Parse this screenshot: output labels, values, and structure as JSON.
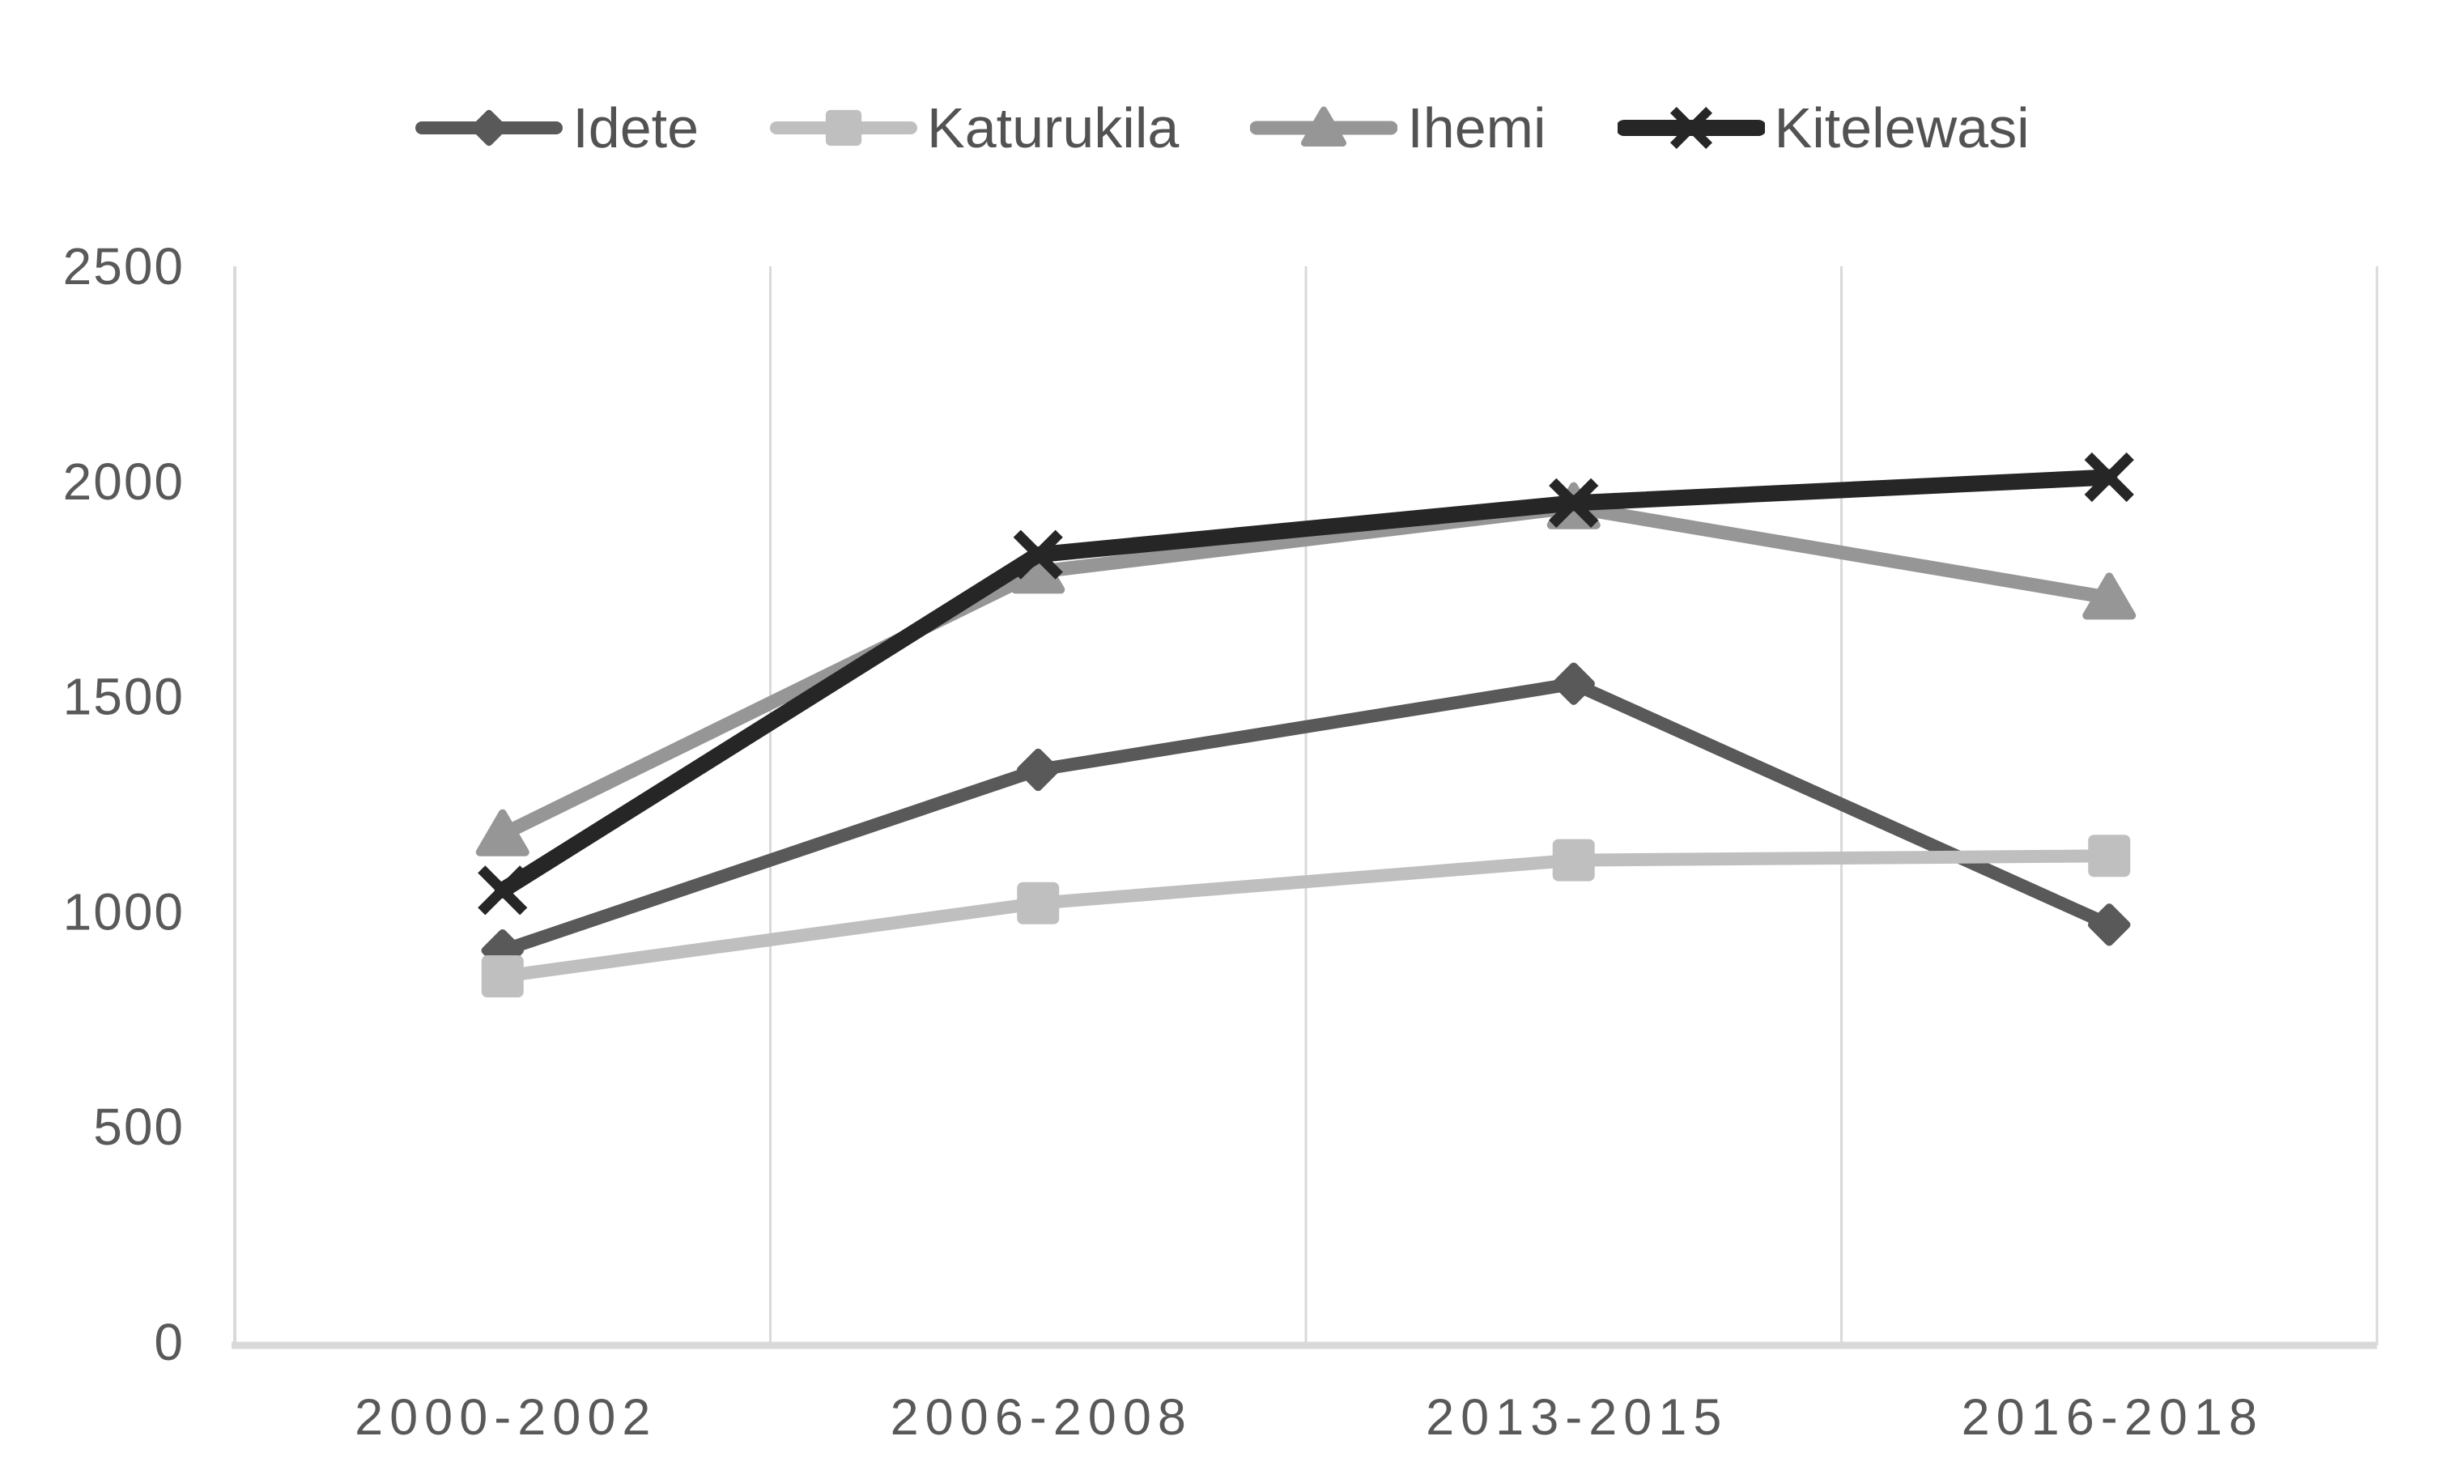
{
  "chart_data": {
    "type": "line",
    "title": "",
    "xlabel": "",
    "ylabel": "",
    "categories": [
      "2000-2002",
      "2006-2008",
      "2013-2015",
      "2016-2018"
    ],
    "series": [
      {
        "name": "Idete",
        "marker": "diamond",
        "color": "#595959",
        "line_width": 16,
        "values": [
          910,
          1330,
          1530,
          970
        ]
      },
      {
        "name": "Katurukila",
        "marker": "square",
        "color": "#bfbfbf",
        "line_width": 16,
        "values": [
          850,
          1020,
          1120,
          1130
        ]
      },
      {
        "name": "Ihemi",
        "marker": "triangle",
        "color": "#969696",
        "line_width": 17,
        "values": [
          1180,
          1790,
          1940,
          1730
        ]
      },
      {
        "name": "Kitelewasi",
        "marker": "x",
        "color": "#262626",
        "line_width": 20,
        "values": [
          1050,
          1830,
          1950,
          2010
        ]
      }
    ],
    "ylim": [
      0,
      2500
    ],
    "y_ticks": [
      0,
      500,
      1000,
      1500,
      2000,
      2500
    ],
    "grid": "vertical-only",
    "gridline_color": "#d9d9d9",
    "axis_line_color": "#d9d9d9",
    "tick_label_color": "#595959",
    "legend_text_color": "#525252",
    "legend_position": "top",
    "background_color": "#ffffff"
  }
}
